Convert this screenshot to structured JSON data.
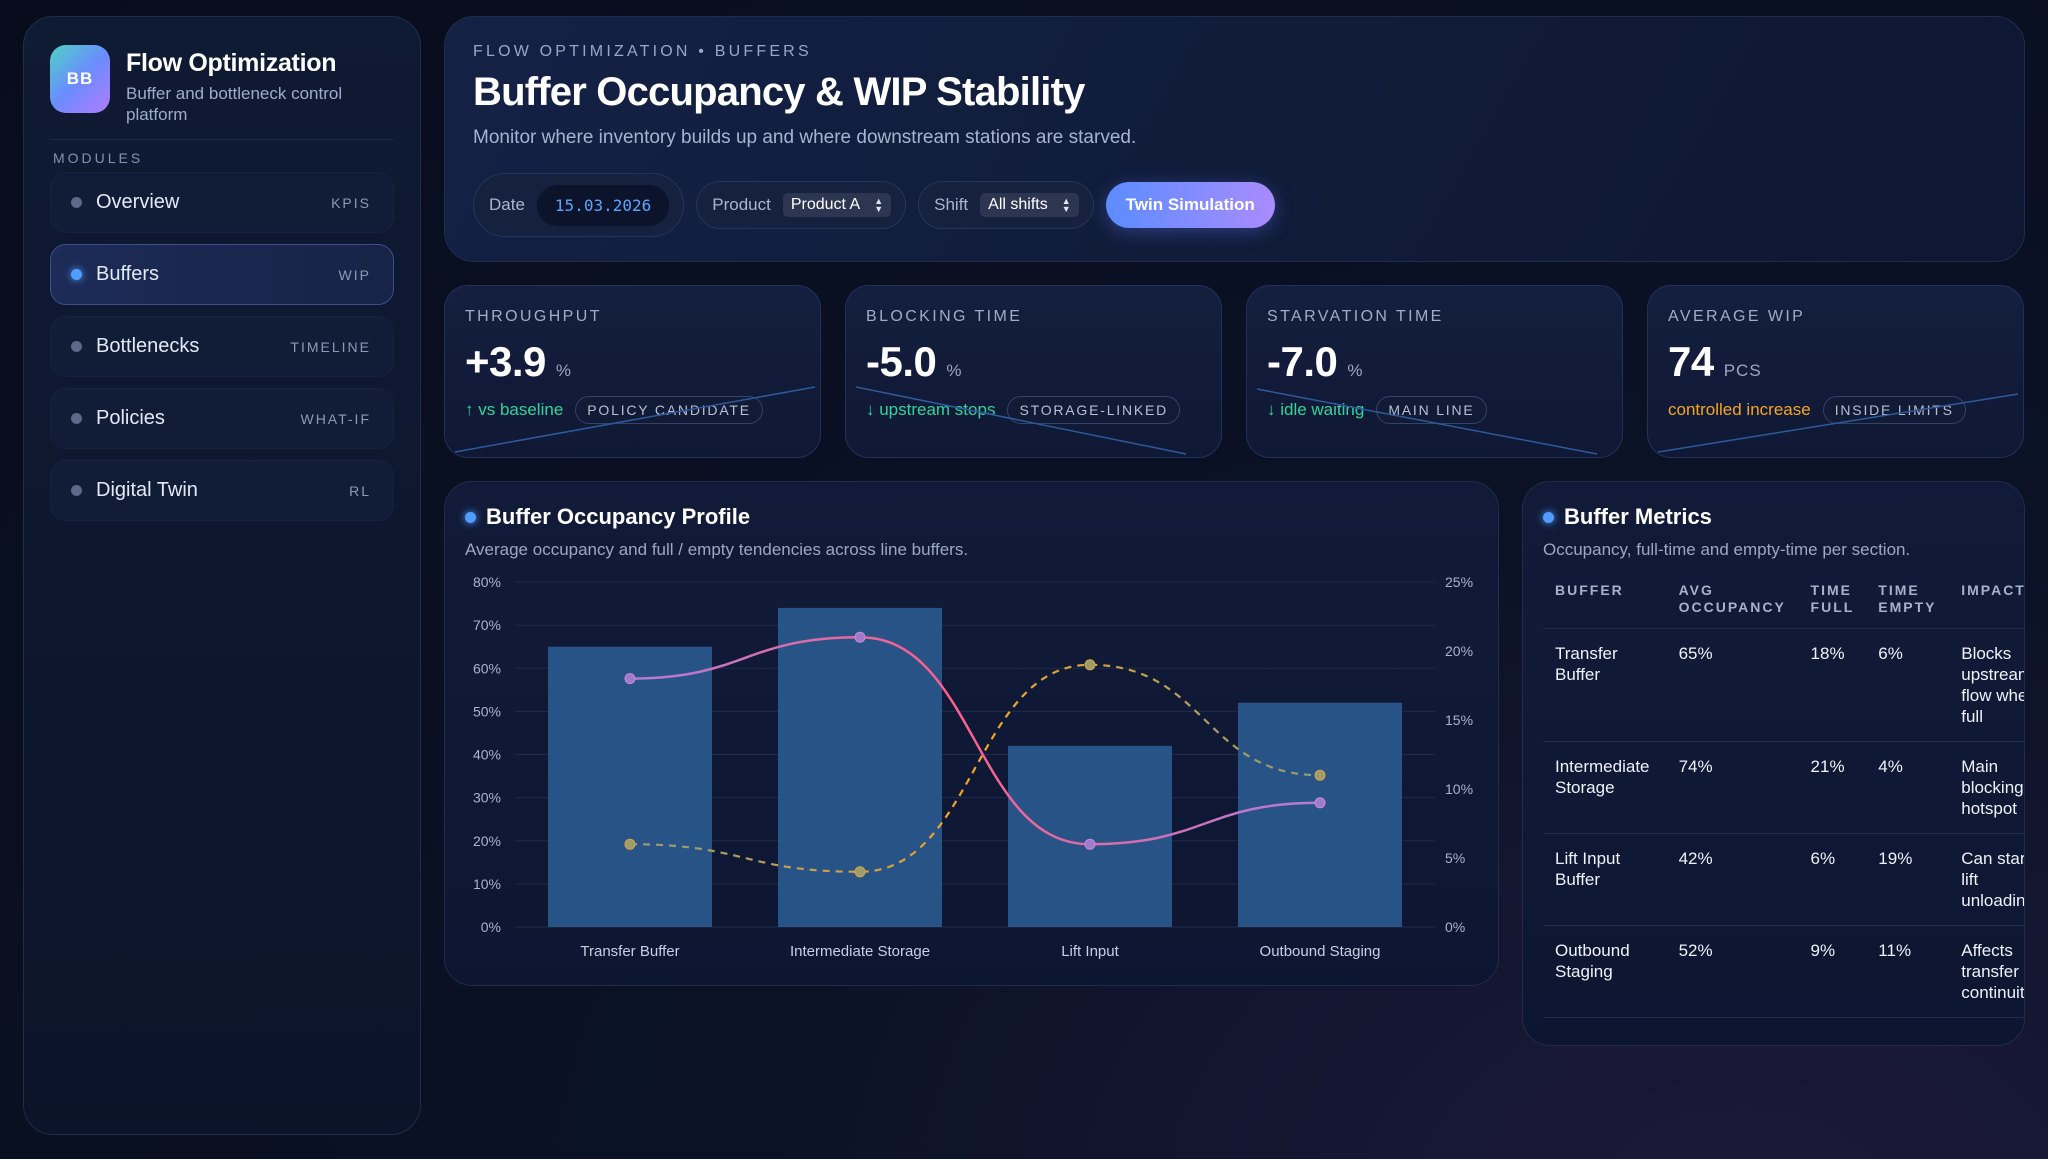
{
  "brand": {
    "logo": "BB",
    "title": "Flow Optimization",
    "subtitle": "Buffer and bottleneck control platform"
  },
  "modules_label": "MODULES",
  "nav": [
    {
      "label": "Overview",
      "tag": "KPIS"
    },
    {
      "label": "Buffers",
      "tag": "WIP"
    },
    {
      "label": "Bottlenecks",
      "tag": "TIMELINE"
    },
    {
      "label": "Policies",
      "tag": "WHAT-IF"
    },
    {
      "label": "Digital Twin",
      "tag": "RL"
    }
  ],
  "header": {
    "eyebrow": "FLOW OPTIMIZATION • BUFFERS",
    "title": "Buffer Occupancy & WIP Stability",
    "subtitle": "Monitor where inventory builds up and where downstream stations are starved.",
    "date_label": "Date",
    "date_value": "15.03.2026",
    "product_label": "Product",
    "product_value": "Product A",
    "shift_label": "Shift",
    "shift_value": "All shifts",
    "twin_button": "Twin Simulation"
  },
  "kpis": [
    {
      "label": "THROUGHPUT",
      "value": "+3.9",
      "unit": "%",
      "trend": "↑ vs baseline",
      "badge": "POLICY CANDIDATE"
    },
    {
      "label": "BLOCKING TIME",
      "value": "-5.0",
      "unit": "%",
      "trend": "↓ upstream stops",
      "badge": "STORAGE-LINKED"
    },
    {
      "label": "STARVATION TIME",
      "value": "-7.0",
      "unit": "%",
      "trend": "↓ idle waiting",
      "badge": "MAIN LINE"
    },
    {
      "label": "AVERAGE WIP",
      "value": "74",
      "unit": "PCS",
      "trend": "controlled increase",
      "badge": "INSIDE LIMITS"
    }
  ],
  "chart_panel": {
    "title": "Buffer Occupancy Profile",
    "subtitle": "Average occupancy and full / empty tendencies across line buffers."
  },
  "chart_data": {
    "type": "bar",
    "categories": [
      "Transfer Buffer",
      "Intermediate Storage",
      "Lift Input",
      "Outbound Staging"
    ],
    "series": [
      {
        "name": "Avg occupancy",
        "type": "bar",
        "axis": "left",
        "values": [
          65,
          74,
          42,
          52
        ]
      },
      {
        "name": "Time full",
        "type": "line",
        "axis": "right",
        "values": [
          18,
          21,
          6,
          9
        ]
      },
      {
        "name": "Time empty",
        "type": "line-dashed",
        "axis": "right",
        "values": [
          6,
          4,
          19,
          11
        ]
      }
    ],
    "y_left": {
      "min": 0,
      "max": 80,
      "ticks": [
        "0%",
        "10%",
        "20%",
        "30%",
        "40%",
        "50%",
        "60%",
        "70%",
        "80%"
      ]
    },
    "y_right": {
      "min": 0,
      "max": 25,
      "ticks": [
        "0%",
        "5%",
        "10%",
        "15%",
        "20%",
        "25%"
      ]
    },
    "colors": {
      "bar": "#2a5a8f",
      "full": "#e0608a",
      "empty": "#f5a524",
      "grid": "#1f2c4a"
    }
  },
  "table_panel": {
    "title": "Buffer Metrics",
    "subtitle": "Occupancy, full-time and empty-time per section.",
    "headers": [
      "BUFFER",
      "AVG OCCUPANCY",
      "TIME FULL",
      "TIME EMPTY",
      "IMPACT"
    ],
    "rows": [
      [
        "Transfer Buffer",
        "65%",
        "18%",
        "6%",
        "Blocks upstream flow when full"
      ],
      [
        "Intermediate Storage",
        "74%",
        "21%",
        "4%",
        "Main blocking hotspot"
      ],
      [
        "Lift Input Buffer",
        "42%",
        "6%",
        "19%",
        "Can starve lift unloading"
      ],
      [
        "Outbound Staging",
        "52%",
        "9%",
        "11%",
        "Affects transfer continuity"
      ]
    ]
  }
}
